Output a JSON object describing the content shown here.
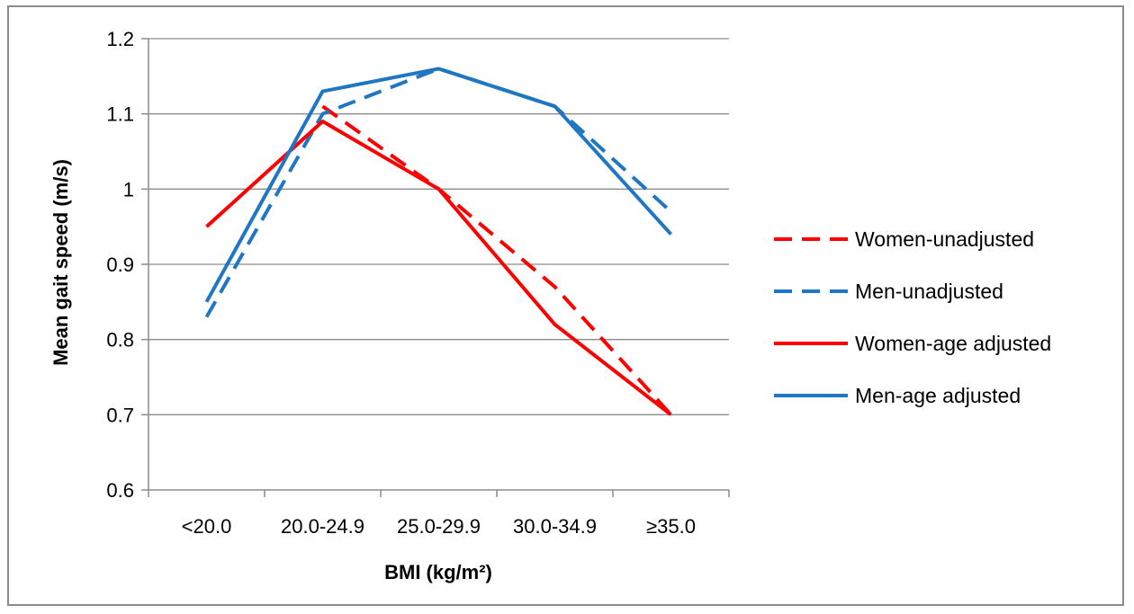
{
  "chart_data": {
    "type": "line",
    "categories": [
      "<20.0",
      "20.0-24.9",
      "25.0-29.9",
      "30.0-34.9",
      "≥35.0"
    ],
    "xlabel": "BMI (kg/m²)",
    "ylabel": "Mean gait speed (m/s)",
    "ylim": [
      0.6,
      1.2
    ],
    "yticks": [
      0.6,
      0.7,
      0.8,
      0.9,
      1,
      1.1,
      1.2
    ],
    "ytick_labels": [
      "0.6",
      "0.7",
      "0.8",
      "0.9",
      "1",
      "1.1",
      "1.2"
    ],
    "grid": true,
    "legend_position": "right",
    "series": [
      {
        "name": "Women-unadjusted",
        "color": "#ff0000",
        "dash": true,
        "x": [
          0.5,
          1.5,
          2.5,
          3.5,
          4.5
        ],
        "values": [
          null,
          1.11,
          1.0,
          0.87,
          0.7
        ]
      },
      {
        "name": "Men-unadjusted",
        "color": "#1f77c4",
        "dash": true,
        "x": [
          0.5,
          1.5,
          2.5,
          3.5,
          4.5
        ],
        "values": [
          0.83,
          1.1,
          1.16,
          1.11,
          0.97
        ]
      },
      {
        "name": "Women-age adjusted",
        "color": "#ff0000",
        "dash": false,
        "x": [
          0.5,
          1.5,
          2.5,
          3.5,
          4.5
        ],
        "values": [
          0.95,
          1.09,
          1.0,
          0.82,
          0.7
        ]
      },
      {
        "name": "Men-age adjusted",
        "color": "#1f77c4",
        "dash": false,
        "x": [
          0.5,
          1.5,
          2.5,
          3.5,
          4.5
        ],
        "values": [
          0.85,
          1.13,
          1.16,
          1.11,
          0.94
        ]
      }
    ]
  }
}
